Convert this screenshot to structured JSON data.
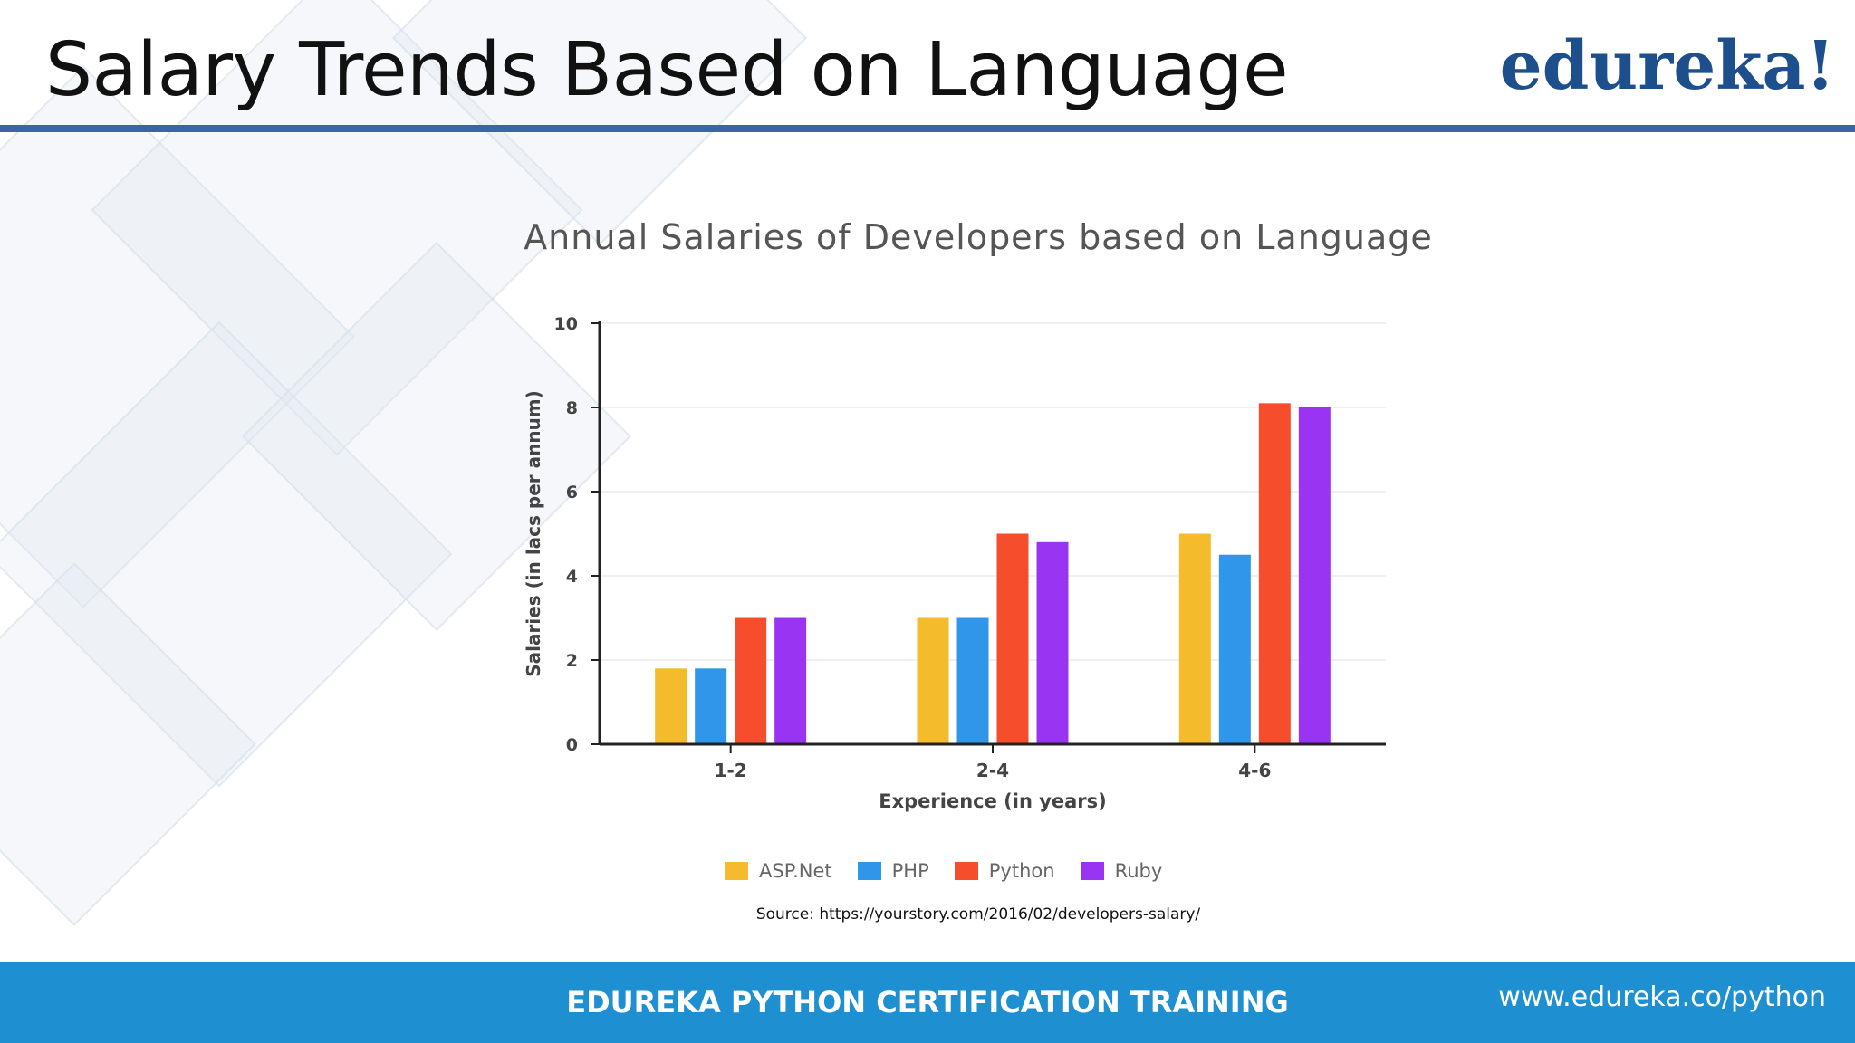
{
  "slide": {
    "title": "Salary Trends Based on Language",
    "logo": "edureka!",
    "source": "Source: https://yourstory.com/2016/02/developers-salary/"
  },
  "footer": {
    "title": "EDUREKA PYTHON CERTIFICATION TRAINING",
    "url": "www.edureka.co/python"
  },
  "colors": {
    "header_rule": "#3e64a8",
    "footer_bg": "#1e8fd0",
    "logo": "#1d4f8c"
  },
  "chart_data": {
    "type": "bar",
    "title": "Annual Salaries of Developers based on Language",
    "xlabel": "Experience (in years)",
    "ylabel": "Salaries (in lacs per annum)",
    "categories": [
      "1-2",
      "2-4",
      "4-6"
    ],
    "ylim": [
      0,
      10
    ],
    "yticks": [
      0,
      2,
      4,
      6,
      8,
      10
    ],
    "grid": true,
    "legend_position": "bottom",
    "series": [
      {
        "name": "ASP.Net",
        "color": "#f4bb2c",
        "values": [
          1.8,
          3.0,
          5.0
        ]
      },
      {
        "name": "PHP",
        "color": "#3096ea",
        "values": [
          1.8,
          3.0,
          4.5
        ]
      },
      {
        "name": "Python",
        "color": "#f64d2c",
        "values": [
          3.0,
          5.0,
          8.1
        ]
      },
      {
        "name": "Ruby",
        "color": "#9a34f3",
        "values": [
          3.0,
          4.8,
          8.0
        ]
      }
    ]
  }
}
